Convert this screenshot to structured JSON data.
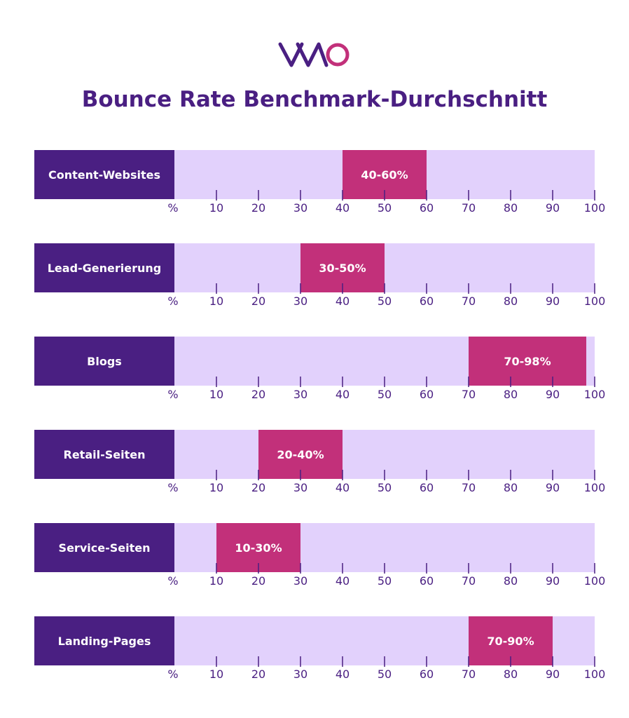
{
  "logo_text": "VWO",
  "chart_data": {
    "type": "bar",
    "title": "Bounce Rate Benchmark-Durchschnitt",
    "unit_label": "%",
    "xlim": [
      0,
      100
    ],
    "ticks": [
      10,
      20,
      30,
      40,
      50,
      60,
      70,
      80,
      90,
      100
    ],
    "categories": [
      "Content-Websites",
      "Lead-Generierung",
      "Blogs",
      "Retail-Seiten",
      "Service-Seiten",
      "Landing-Pages"
    ],
    "ranges": [
      {
        "low": 40,
        "high": 60,
        "label": "40-60%"
      },
      {
        "low": 30,
        "high": 50,
        "label": "30-50%"
      },
      {
        "low": 70,
        "high": 98,
        "label": "70-98%"
      },
      {
        "low": 20,
        "high": 40,
        "label": "20-40%"
      },
      {
        "low": 10,
        "high": 30,
        "label": "10-30%"
      },
      {
        "low": 70,
        "high": 90,
        "label": "70-90%"
      }
    ],
    "colors": {
      "category": "#4a1f82",
      "track": "#e2d1fc",
      "range": "#c2307a",
      "ticks": "#4a1f82"
    }
  }
}
